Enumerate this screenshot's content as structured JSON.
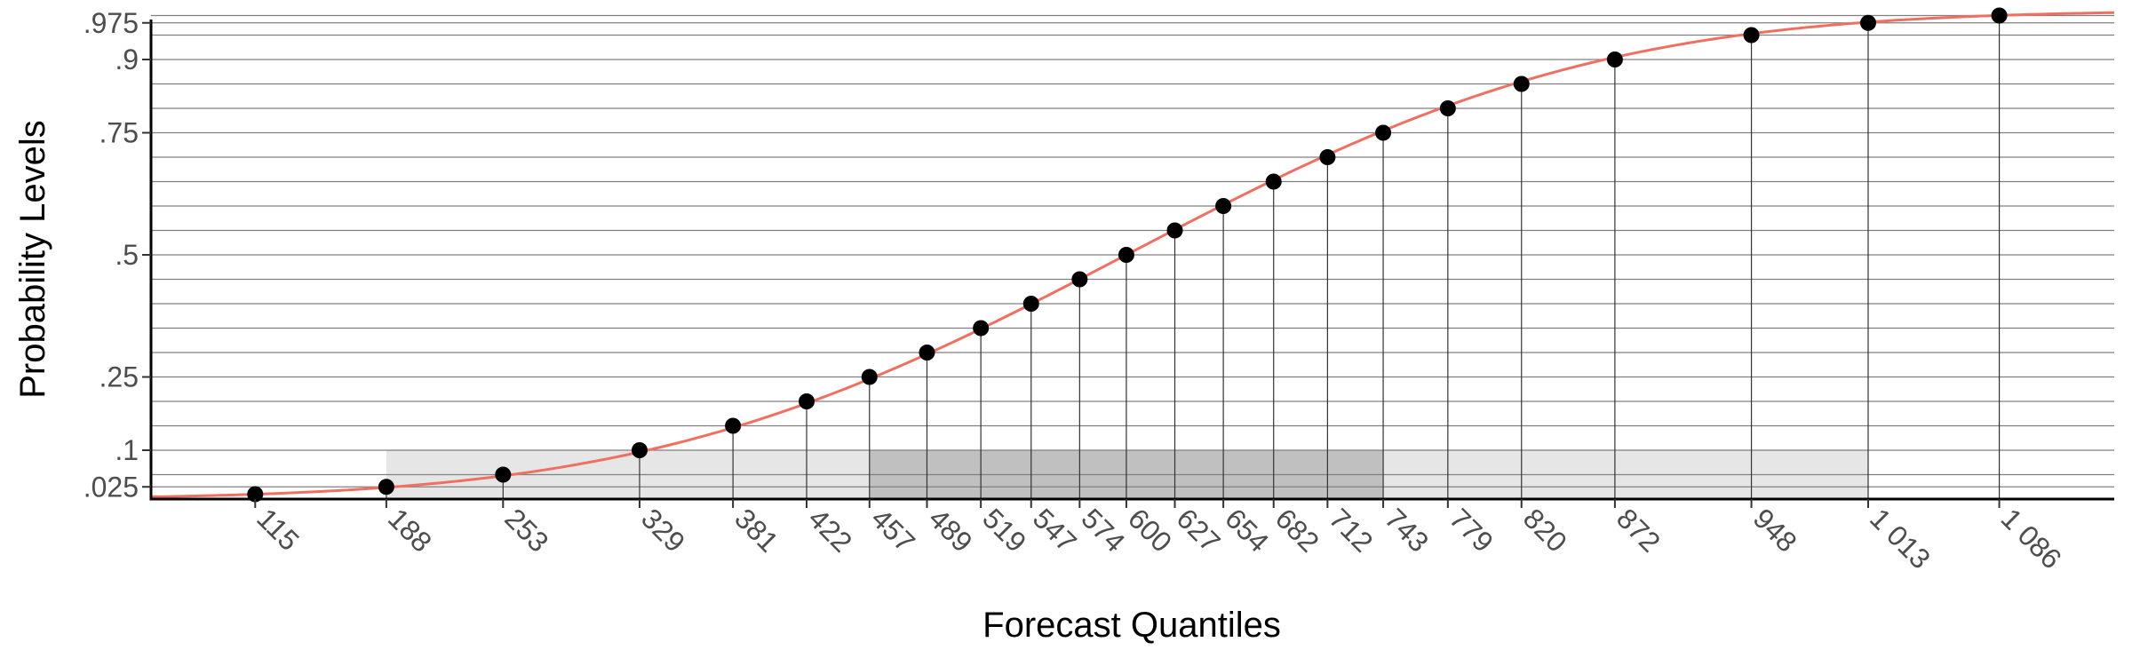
{
  "chart_data": {
    "type": "line",
    "title": "",
    "xlabel": "Forecast Quantiles",
    "ylabel": "Probability Levels",
    "xlim": [
      57,
      1150
    ],
    "ylim": [
      0,
      1
    ],
    "x_tick_labels": [
      "115",
      "188",
      "253",
      "329",
      "381",
      "422",
      "457",
      "489",
      "519",
      "547",
      "574",
      "600",
      "627",
      "654",
      "682",
      "712",
      "743",
      "779",
      "820",
      "872",
      "948",
      "1 013",
      "1 086"
    ],
    "y_ticks": [
      {
        "value": 0.025,
        "label": ".025"
      },
      {
        "value": 0.1,
        "label": ".1"
      },
      {
        "value": 0.25,
        "label": ".25"
      },
      {
        "value": 0.5,
        "label": ".5"
      },
      {
        "value": 0.75,
        "label": ".75"
      },
      {
        "value": 0.9,
        "label": ".9"
      },
      {
        "value": 0.975,
        "label": ".975"
      }
    ],
    "gridlines_y": [
      0.025,
      0.05,
      0.1,
      0.15,
      0.2,
      0.25,
      0.3,
      0.35,
      0.4,
      0.45,
      0.5,
      0.55,
      0.6,
      0.65,
      0.7,
      0.75,
      0.8,
      0.85,
      0.9,
      0.95,
      0.975,
      0.99
    ],
    "quantiles": [
      {
        "x": 115,
        "p": 0.01
      },
      {
        "x": 188,
        "p": 0.025
      },
      {
        "x": 253,
        "p": 0.05
      },
      {
        "x": 329,
        "p": 0.1
      },
      {
        "x": 381,
        "p": 0.15
      },
      {
        "x": 422,
        "p": 0.2
      },
      {
        "x": 457,
        "p": 0.25
      },
      {
        "x": 489,
        "p": 0.3
      },
      {
        "x": 519,
        "p": 0.35
      },
      {
        "x": 547,
        "p": 0.4
      },
      {
        "x": 574,
        "p": 0.45
      },
      {
        "x": 600,
        "p": 0.5
      },
      {
        "x": 627,
        "p": 0.55
      },
      {
        "x": 654,
        "p": 0.6
      },
      {
        "x": 682,
        "p": 0.65
      },
      {
        "x": 712,
        "p": 0.7
      },
      {
        "x": 743,
        "p": 0.75
      },
      {
        "x": 779,
        "p": 0.8
      },
      {
        "x": 820,
        "p": 0.85
      },
      {
        "x": 872,
        "p": 0.9
      },
      {
        "x": 948,
        "p": 0.95
      },
      {
        "x": 1013,
        "p": 0.975
      },
      {
        "x": 1086,
        "p": 0.99
      }
    ],
    "intervals": [
      {
        "x_from": 188,
        "x_to": 1013,
        "p_to": 0.1
      },
      {
        "x_from": 457,
        "x_to": 743,
        "p_to": 0.1
      }
    ],
    "cdf_curve": {
      "distribution": "normal",
      "mean": 600,
      "sd": 208
    },
    "colors": {
      "curve": "#ef6f62",
      "point": "#000000",
      "gridline": "#808080",
      "outer_interval": "#e6e6e6",
      "inner_interval": "#c0c0c0",
      "axis": "#000000"
    }
  }
}
